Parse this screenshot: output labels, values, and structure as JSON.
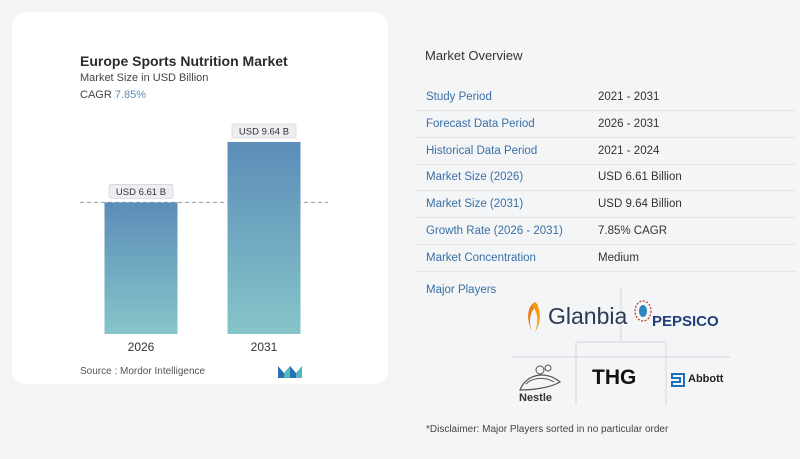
{
  "chart_data": {
    "type": "bar",
    "title": "Europe Sports Nutrition Market",
    "subtitle": "Market Size in USD Billion",
    "cagr_label": "CAGR",
    "cagr_value": "7.85%",
    "categories": [
      "2026",
      "2031"
    ],
    "values": [
      6.61,
      9.64
    ],
    "data_labels": [
      "USD 6.61 B",
      "USD 9.64 B"
    ],
    "ylim": [
      0,
      9.64
    ],
    "grid": false,
    "reference_line": "dashed line at first bar value",
    "colors": {
      "bar_top": "#5b8db8",
      "bar_bottom": "#86c5c9"
    }
  },
  "source": "Source :  Mordor Intelligence",
  "overview": {
    "title": "Market Overview",
    "rows": [
      {
        "label": "Study Period",
        "value": "2021 - 2031"
      },
      {
        "label": "Forecast Data Period",
        "value": "2026 - 2031"
      },
      {
        "label": "Historical Data Period",
        "value": "2021 - 2024"
      },
      {
        "label": "Market Size (2026)",
        "value": "USD 6.61 Billion"
      },
      {
        "label": "Market Size (2031)",
        "value": "USD 9.64 Billion"
      },
      {
        "label": "Growth Rate (2026 - 2031)",
        "value": "7.85% CAGR"
      },
      {
        "label": "Market Concentration",
        "value": "Medium"
      }
    ],
    "players_title": "Major Players",
    "players": [
      "Glanbia",
      "PEPSICO",
      "Nestle",
      "THG",
      "Abbott"
    ]
  },
  "disclaimer": "*Disclaimer: Major Players sorted in no particular order",
  "accent": "#3a6fa5"
}
